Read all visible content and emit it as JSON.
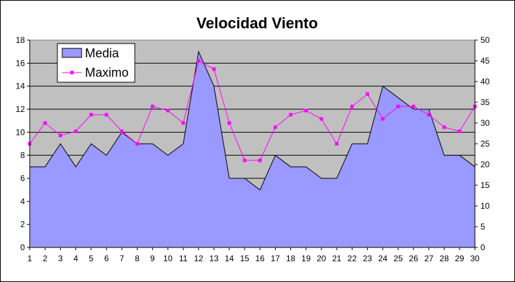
{
  "chart_data": {
    "type": "area+line",
    "title": "Velocidad Viento",
    "x": [
      1,
      2,
      3,
      4,
      5,
      6,
      7,
      8,
      9,
      10,
      11,
      12,
      13,
      14,
      15,
      16,
      17,
      18,
      19,
      20,
      21,
      22,
      23,
      24,
      25,
      26,
      27,
      28,
      29,
      30
    ],
    "series": [
      {
        "name": "Media",
        "kind": "area",
        "axis": "left",
        "color": "#9999FF",
        "values": [
          7,
          7,
          9,
          7,
          9,
          8,
          10,
          9,
          9,
          8,
          9,
          17,
          14,
          6,
          6,
          5,
          8,
          7,
          7,
          6,
          6,
          9,
          9,
          14,
          13,
          12,
          12,
          8,
          8,
          7
        ]
      },
      {
        "name": "Maximo",
        "kind": "line",
        "axis": "right",
        "color": "#FF00FF",
        "values": [
          25,
          30,
          27,
          28,
          32,
          32,
          28,
          25,
          34,
          33,
          30,
          45,
          43,
          30,
          21,
          21,
          29,
          32,
          33,
          31,
          25,
          34,
          37,
          31,
          34,
          34,
          32,
          29,
          28,
          34
        ]
      }
    ],
    "y_left": {
      "min": 0,
      "max": 18,
      "step": 2
    },
    "y_right": {
      "min": 0,
      "max": 50,
      "step": 5
    },
    "grid": true,
    "legend_position": "top-left",
    "plot_background": "#C0C0C0"
  }
}
